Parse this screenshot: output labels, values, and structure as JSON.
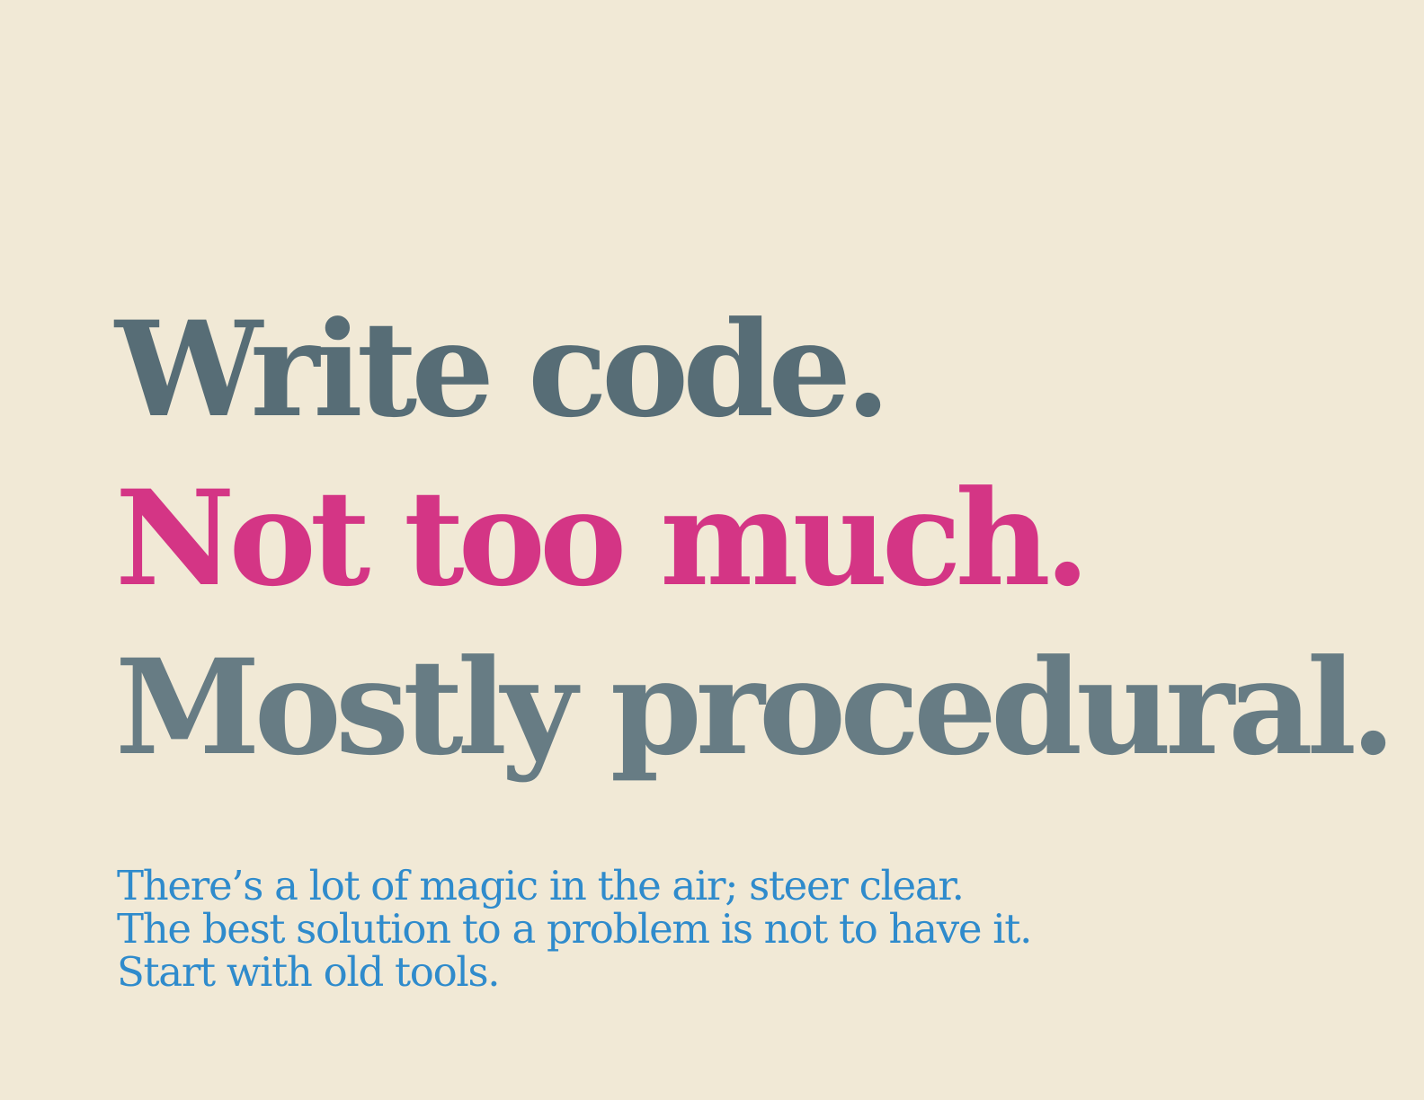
{
  "background_color": "#f1e9d6",
  "headline": {
    "lines": [
      {
        "text": "Write code.",
        "color": "#576d76"
      },
      {
        "text": "Not too much.",
        "color": "#d43585"
      },
      {
        "text": "Mostly procedural.",
        "color": "#677c84"
      }
    ]
  },
  "subtext": {
    "color": "#2f8bcc",
    "lines": [
      "There’s a lot of magic in the air; steer clear.",
      "The best solution to a problem is not to have it.",
      "Start with old tools."
    ]
  }
}
